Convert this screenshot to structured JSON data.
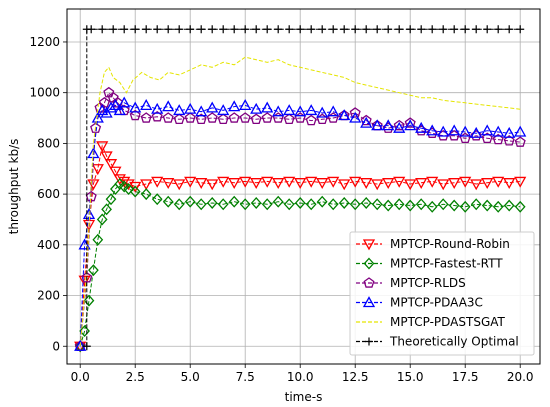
{
  "chart_data": {
    "type": "line",
    "xlabel": "time-s",
    "ylabel": "throughput kb/s",
    "xlim": [
      -0.6,
      20.9
    ],
    "ylim": [
      -70,
      1330
    ],
    "xticks": [
      0.0,
      2.5,
      5.0,
      7.5,
      10.0,
      12.5,
      15.0,
      17.5,
      20.0
    ],
    "xtick_labels": [
      "0.0",
      "2.5",
      "5.0",
      "7.5",
      "10.0",
      "12.5",
      "15.0",
      "17.5",
      "20.0"
    ],
    "yticks": [
      0,
      200,
      400,
      600,
      800,
      1000,
      1200
    ],
    "ytick_labels": [
      "0",
      "200",
      "400",
      "600",
      "800",
      "1000",
      "1200"
    ],
    "grid": true,
    "legend_position": "bottom-right",
    "series": [
      {
        "name": "MPTCP-Round-Robin",
        "color": "#ff0000",
        "marker": "triangle-down",
        "line": "dashed",
        "points": [
          [
            0,
            0
          ],
          [
            0.2,
            260
          ],
          [
            0.4,
            480
          ],
          [
            0.6,
            640
          ],
          [
            0.8,
            700
          ],
          [
            1.0,
            790
          ],
          [
            1.2,
            750
          ],
          [
            1.4,
            720
          ],
          [
            1.6,
            690
          ],
          [
            1.8,
            660
          ],
          [
            2.0,
            650
          ],
          [
            2.2,
            640
          ],
          [
            2.5,
            630
          ],
          [
            3,
            640
          ],
          [
            3.5,
            650
          ],
          [
            4,
            645
          ],
          [
            4.5,
            640
          ],
          [
            5,
            650
          ],
          [
            5.5,
            645
          ],
          [
            6,
            640
          ],
          [
            6.5,
            650
          ],
          [
            7,
            645
          ],
          [
            7.5,
            650
          ],
          [
            8,
            645
          ],
          [
            8.5,
            650
          ],
          [
            9,
            645
          ],
          [
            9.5,
            650
          ],
          [
            10,
            645
          ],
          [
            10.5,
            650
          ],
          [
            11,
            645
          ],
          [
            11.5,
            650
          ],
          [
            12,
            640
          ],
          [
            12.5,
            650
          ],
          [
            13,
            645
          ],
          [
            13.5,
            640
          ],
          [
            14,
            645
          ],
          [
            14.5,
            650
          ],
          [
            15,
            640
          ],
          [
            15.5,
            645
          ],
          [
            16,
            650
          ],
          [
            16.5,
            640
          ],
          [
            17,
            645
          ],
          [
            17.5,
            650
          ],
          [
            18,
            640
          ],
          [
            18.5,
            645
          ],
          [
            19,
            650
          ],
          [
            19.5,
            645
          ],
          [
            20,
            650
          ]
        ]
      },
      {
        "name": "MPTCP-Fastest-RTT",
        "color": "#008000",
        "marker": "diamond",
        "line": "dashed",
        "points": [
          [
            0,
            0
          ],
          [
            0.2,
            60
          ],
          [
            0.4,
            180
          ],
          [
            0.6,
            300
          ],
          [
            0.8,
            420
          ],
          [
            1.0,
            500
          ],
          [
            1.2,
            540
          ],
          [
            1.4,
            580
          ],
          [
            1.6,
            620
          ],
          [
            1.8,
            640
          ],
          [
            2.0,
            630
          ],
          [
            2.2,
            620
          ],
          [
            2.5,
            610
          ],
          [
            3,
            600
          ],
          [
            3.5,
            580
          ],
          [
            4,
            570
          ],
          [
            4.5,
            560
          ],
          [
            5,
            570
          ],
          [
            5.5,
            560
          ],
          [
            6,
            565
          ],
          [
            6.5,
            560
          ],
          [
            7,
            570
          ],
          [
            7.5,
            560
          ],
          [
            8,
            565
          ],
          [
            8.5,
            560
          ],
          [
            9,
            570
          ],
          [
            9.5,
            560
          ],
          [
            10,
            565
          ],
          [
            10.5,
            560
          ],
          [
            11,
            570
          ],
          [
            11.5,
            560
          ],
          [
            12,
            565
          ],
          [
            12.5,
            560
          ],
          [
            13,
            565
          ],
          [
            13.5,
            560
          ],
          [
            14,
            555
          ],
          [
            14.5,
            560
          ],
          [
            15,
            555
          ],
          [
            15.5,
            560
          ],
          [
            16,
            550
          ],
          [
            16.5,
            560
          ],
          [
            17,
            555
          ],
          [
            17.5,
            550
          ],
          [
            18,
            560
          ],
          [
            18.5,
            555
          ],
          [
            19,
            550
          ],
          [
            19.5,
            555
          ],
          [
            20,
            550
          ]
        ]
      },
      {
        "name": "MPTCP-RLDS",
        "color": "#800080",
        "marker": "pentagon",
        "line": "dashed",
        "points": [
          [
            0,
            0
          ],
          [
            0.3,
            270
          ],
          [
            0.5,
            590
          ],
          [
            0.7,
            860
          ],
          [
            0.9,
            940
          ],
          [
            1.1,
            960
          ],
          [
            1.3,
            1000
          ],
          [
            1.5,
            980
          ],
          [
            1.7,
            960
          ],
          [
            2.0,
            930
          ],
          [
            2.5,
            910
          ],
          [
            3,
            900
          ],
          [
            3.5,
            905
          ],
          [
            4,
            900
          ],
          [
            4.5,
            895
          ],
          [
            5,
            900
          ],
          [
            5.5,
            895
          ],
          [
            6,
            900
          ],
          [
            6.5,
            895
          ],
          [
            7,
            900
          ],
          [
            7.5,
            900
          ],
          [
            8,
            895
          ],
          [
            8.5,
            900
          ],
          [
            9,
            900
          ],
          [
            9.5,
            895
          ],
          [
            10,
            900
          ],
          [
            10.5,
            890
          ],
          [
            11,
            895
          ],
          [
            11.5,
            900
          ],
          [
            12,
            910
          ],
          [
            12.5,
            920
          ],
          [
            13,
            890
          ],
          [
            13.5,
            870
          ],
          [
            14,
            860
          ],
          [
            14.5,
            870
          ],
          [
            15,
            880
          ],
          [
            15.5,
            850
          ],
          [
            16,
            840
          ],
          [
            16.5,
            830
          ],
          [
            17,
            830
          ],
          [
            17.5,
            820
          ],
          [
            18,
            830
          ],
          [
            18.5,
            820
          ],
          [
            19,
            815
          ],
          [
            19.5,
            810
          ],
          [
            20,
            805
          ]
        ]
      },
      {
        "name": "MPTCP-PDAA3C",
        "color": "#0000ff",
        "marker": "triangle-up",
        "line": "dashed",
        "points": [
          [
            0,
            0
          ],
          [
            0.2,
            400
          ],
          [
            0.4,
            520
          ],
          [
            0.6,
            760
          ],
          [
            0.8,
            900
          ],
          [
            1.0,
            930
          ],
          [
            1.2,
            920
          ],
          [
            1.4,
            940
          ],
          [
            1.6,
            950
          ],
          [
            1.8,
            930
          ],
          [
            2.0,
            960
          ],
          [
            2.5,
            940
          ],
          [
            3,
            950
          ],
          [
            3.5,
            935
          ],
          [
            4,
            945
          ],
          [
            4.5,
            930
          ],
          [
            5,
            935
          ],
          [
            5.5,
            925
          ],
          [
            6,
            940
          ],
          [
            6.5,
            930
          ],
          [
            7,
            945
          ],
          [
            7.5,
            950
          ],
          [
            8,
            935
          ],
          [
            8.5,
            940
          ],
          [
            9,
            925
          ],
          [
            9.5,
            930
          ],
          [
            10,
            925
          ],
          [
            10.5,
            930
          ],
          [
            11,
            920
          ],
          [
            11.5,
            925
          ],
          [
            12,
            910
          ],
          [
            12.5,
            900
          ],
          [
            13,
            880
          ],
          [
            13.5,
            870
          ],
          [
            14,
            870
          ],
          [
            14.5,
            860
          ],
          [
            15,
            870
          ],
          [
            15.5,
            860
          ],
          [
            16,
            850
          ],
          [
            16.5,
            845
          ],
          [
            17,
            850
          ],
          [
            17.5,
            845
          ],
          [
            18,
            840
          ],
          [
            18.5,
            850
          ],
          [
            19,
            845
          ],
          [
            19.5,
            840
          ],
          [
            20,
            845
          ]
        ]
      },
      {
        "name": "MPTCP-PDASTSGAT",
        "color": "#e5e500",
        "marker": "none",
        "line": "dashed",
        "points": [
          [
            0,
            0
          ],
          [
            0.3,
            300
          ],
          [
            0.6,
            800
          ],
          [
            0.9,
            1000
          ],
          [
            1.1,
            1080
          ],
          [
            1.3,
            1100
          ],
          [
            1.5,
            1060
          ],
          [
            1.8,
            1040
          ],
          [
            2.1,
            1000
          ],
          [
            2.4,
            1050
          ],
          [
            2.8,
            1080
          ],
          [
            3.2,
            1060
          ],
          [
            3.6,
            1050
          ],
          [
            4,
            1080
          ],
          [
            4.5,
            1070
          ],
          [
            5,
            1090
          ],
          [
            5.5,
            1110
          ],
          [
            6,
            1100
          ],
          [
            6.5,
            1120
          ],
          [
            7,
            1110
          ],
          [
            7.5,
            1140
          ],
          [
            8,
            1130
          ],
          [
            8.5,
            1120
          ],
          [
            9,
            1130
          ],
          [
            9.5,
            1110
          ],
          [
            10,
            1100
          ],
          [
            10.5,
            1090
          ],
          [
            11,
            1080
          ],
          [
            11.5,
            1070
          ],
          [
            12,
            1060
          ],
          [
            12.5,
            1040
          ],
          [
            13,
            1030
          ],
          [
            13.5,
            1020
          ],
          [
            14,
            1010
          ],
          [
            14.5,
            1000
          ],
          [
            15,
            990
          ],
          [
            15.5,
            980
          ],
          [
            16,
            980
          ],
          [
            16.5,
            970
          ],
          [
            17,
            965
          ],
          [
            17.5,
            960
          ],
          [
            18,
            955
          ],
          [
            18.5,
            950
          ],
          [
            19,
            945
          ],
          [
            19.5,
            940
          ],
          [
            20,
            935
          ]
        ]
      },
      {
        "name": "Theoretically Optimal",
        "color": "#000000",
        "marker": "plus",
        "line": "dashed",
        "points": [
          [
            0.3,
            0
          ],
          [
            0.3,
            1250
          ],
          [
            0.5,
            1250
          ],
          [
            1,
            1250
          ],
          [
            1.5,
            1250
          ],
          [
            2,
            1250
          ],
          [
            2.5,
            1250
          ],
          [
            3,
            1250
          ],
          [
            3.5,
            1250
          ],
          [
            4,
            1250
          ],
          [
            4.5,
            1250
          ],
          [
            5,
            1250
          ],
          [
            5.5,
            1250
          ],
          [
            6,
            1250
          ],
          [
            6.5,
            1250
          ],
          [
            7,
            1250
          ],
          [
            7.5,
            1250
          ],
          [
            8,
            1250
          ],
          [
            8.5,
            1250
          ],
          [
            9,
            1250
          ],
          [
            9.5,
            1250
          ],
          [
            10,
            1250
          ],
          [
            10.5,
            1250
          ],
          [
            11,
            1250
          ],
          [
            11.5,
            1250
          ],
          [
            12,
            1250
          ],
          [
            12.5,
            1250
          ],
          [
            13,
            1250
          ],
          [
            13.5,
            1250
          ],
          [
            14,
            1250
          ],
          [
            14.5,
            1250
          ],
          [
            15,
            1250
          ],
          [
            15.5,
            1250
          ],
          [
            16,
            1250
          ],
          [
            16.5,
            1250
          ],
          [
            17,
            1250
          ],
          [
            17.5,
            1250
          ],
          [
            18,
            1250
          ],
          [
            18.5,
            1250
          ],
          [
            19,
            1250
          ],
          [
            19.5,
            1250
          ],
          [
            20,
            1250
          ]
        ]
      }
    ]
  }
}
